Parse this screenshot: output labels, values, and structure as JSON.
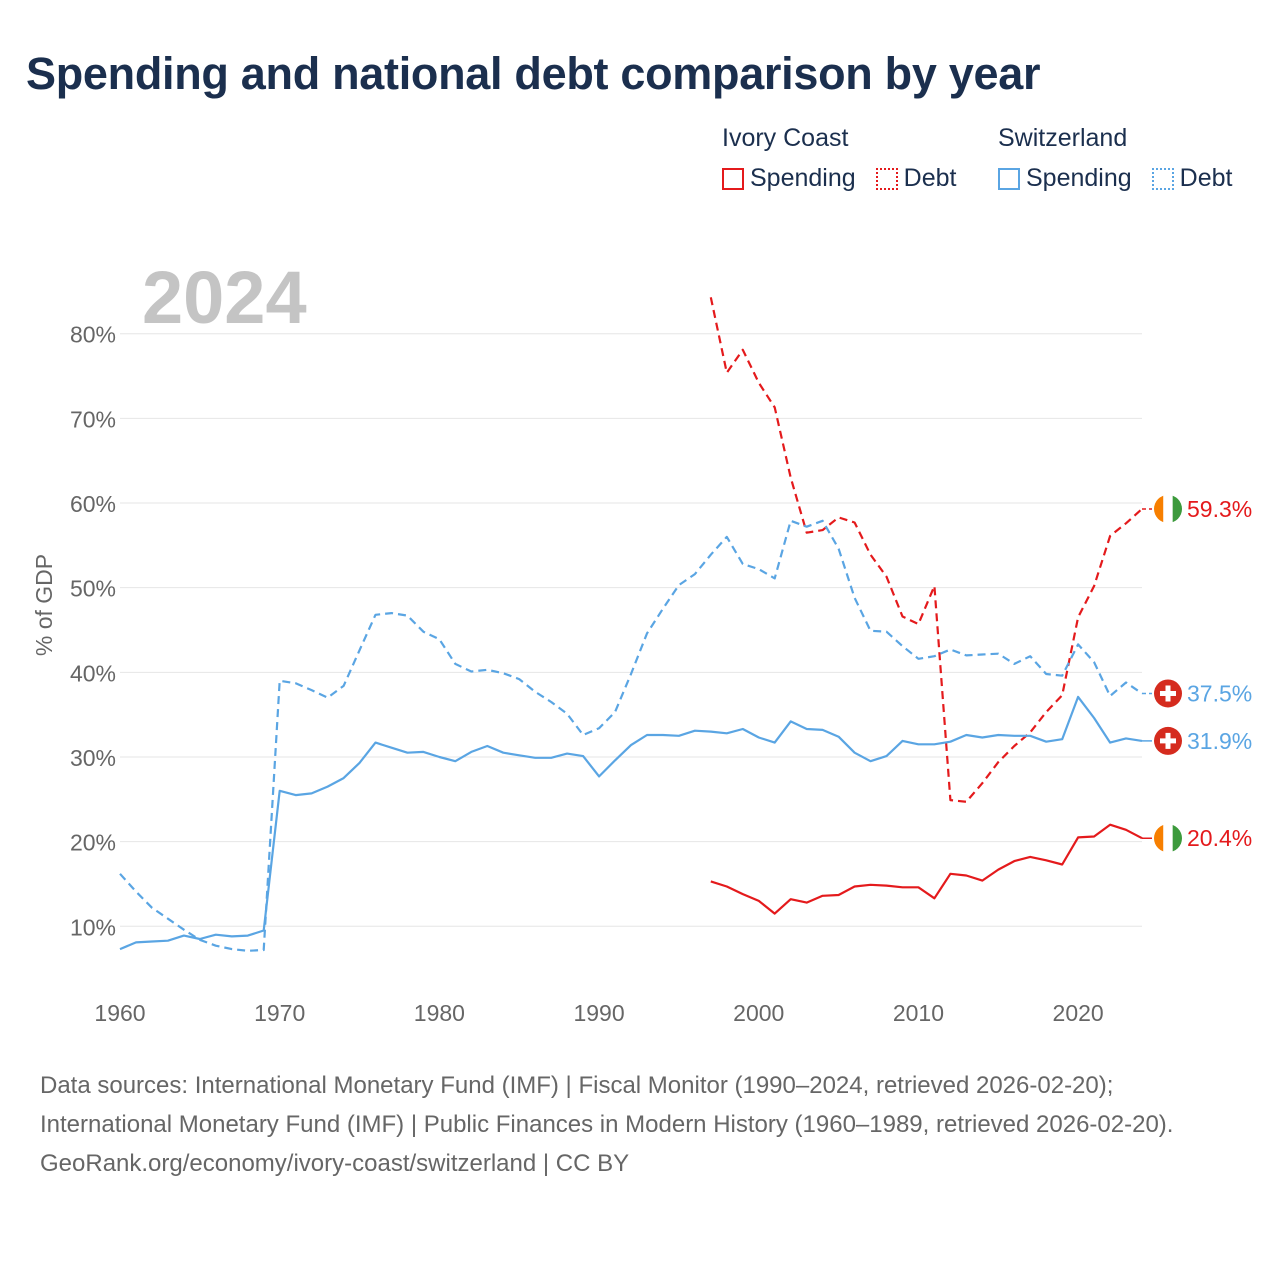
{
  "colors": {
    "ivory_coast": "#e41a1c",
    "switzerland": "#5aa5e3",
    "title": "#1b2f4e",
    "axis_text": "#666666",
    "grid": "#e6e6e6",
    "year_watermark": "#c4c4c4",
    "ci_flag_orange": "#f77f00",
    "ci_flag_white": "#ffffff",
    "ci_flag_green": "#3c9a3c",
    "ch_flag_red": "#d52b1e"
  },
  "title": "Spending and national debt comparison by year",
  "legend": {
    "groups": [
      {
        "name": "Ivory Coast",
        "spending_label": "Spending",
        "debt_label": "Debt"
      },
      {
        "name": "Switzerland",
        "spending_label": "Spending",
        "debt_label": "Debt"
      }
    ]
  },
  "footer": {
    "sources": "Data sources: International Monetary Fund (IMF) | Fiscal Monitor (1990–2024, retrieved 2026-02-20); International Monetary Fund (IMF) | Public Finances in Modern History (1960–1989, retrieved 2026-02-20).",
    "attribution": "GeoRank.org/economy/ivory-coast/switzerland | CC BY"
  },
  "chart_data": {
    "type": "line",
    "title": "Spending and national debt comparison by year",
    "year_label": "2024",
    "ylabel": "% of GDP",
    "xlabel": "",
    "xlim": [
      1960,
      2024
    ],
    "ylim": [
      2,
      88
    ],
    "x_ticks": [
      1960,
      1970,
      1980,
      1990,
      2000,
      2010,
      2020
    ],
    "x_tick_labels": [
      "1960",
      "1970",
      "1980",
      "1990",
      "2000",
      "2010",
      "2020"
    ],
    "y_ticks": [
      10,
      20,
      30,
      40,
      50,
      60,
      70,
      80
    ],
    "y_tick_labels": [
      "10%",
      "20%",
      "30%",
      "40%",
      "50%",
      "60%",
      "70%",
      "80%"
    ],
    "series": [
      {
        "name": "Ivory Coast Debt",
        "country": "ci",
        "style": "dashed",
        "color": "#e41a1c",
        "end_label": "59.3%",
        "x": [
          1997,
          1998,
          1999,
          2000,
          2001,
          2002,
          2003,
          2004,
          2005,
          2006,
          2007,
          2008,
          2009,
          2010,
          2011,
          2012,
          2013,
          2014,
          2015,
          2016,
          2017,
          2018,
          2019,
          2020,
          2021,
          2022,
          2023,
          2024
        ],
        "values": [
          84.3,
          75.4,
          78.1,
          74.2,
          71.3,
          63.0,
          56.5,
          56.8,
          58.3,
          57.7,
          53.9,
          51.3,
          46.6,
          45.7,
          50.2,
          24.9,
          24.7,
          26.9,
          29.4,
          31.3,
          32.9,
          35.3,
          37.3,
          46.5,
          50.2,
          56.1,
          57.6,
          59.3
        ]
      },
      {
        "name": "Ivory Coast Spending",
        "country": "ci",
        "style": "solid",
        "color": "#e41a1c",
        "end_label": "20.4%",
        "x": [
          1997,
          1998,
          1999,
          2000,
          2001,
          2002,
          2003,
          2004,
          2005,
          2006,
          2007,
          2008,
          2009,
          2010,
          2011,
          2012,
          2013,
          2014,
          2015,
          2016,
          2017,
          2018,
          2019,
          2020,
          2021,
          2022,
          2023,
          2024
        ],
        "values": [
          15.3,
          14.7,
          13.8,
          13.0,
          11.5,
          13.2,
          12.8,
          13.6,
          13.7,
          14.7,
          14.9,
          14.8,
          14.6,
          14.6,
          13.3,
          16.2,
          16.0,
          15.4,
          16.7,
          17.7,
          18.2,
          17.8,
          17.3,
          20.5,
          20.6,
          22.0,
          21.4,
          20.4
        ]
      },
      {
        "name": "Switzerland Debt",
        "country": "ch",
        "style": "dashed",
        "color": "#5aa5e3",
        "end_label": "37.5%",
        "x": [
          1960,
          1961,
          1962,
          1963,
          1964,
          1965,
          1966,
          1967,
          1968,
          1969,
          1970,
          1971,
          1972,
          1973,
          1974,
          1975,
          1976,
          1977,
          1978,
          1979,
          1980,
          1981,
          1982,
          1983,
          1984,
          1985,
          1986,
          1987,
          1988,
          1989,
          1990,
          1991,
          1992,
          1993,
          1994,
          1995,
          1996,
          1997,
          1998,
          1999,
          2000,
          2001,
          2002,
          2003,
          2004,
          2005,
          2006,
          2007,
          2008,
          2009,
          2010,
          2011,
          2012,
          2013,
          2014,
          2015,
          2016,
          2017,
          2018,
          2019,
          2020,
          2021,
          2022,
          2023,
          2024
        ],
        "values": [
          16.2,
          14.1,
          12.2,
          10.9,
          9.6,
          8.4,
          7.7,
          7.3,
          7.1,
          7.2,
          39.0,
          38.7,
          37.9,
          37.0,
          38.4,
          42.6,
          46.8,
          47.0,
          46.7,
          44.8,
          43.9,
          41.0,
          40.1,
          40.3,
          39.9,
          39.2,
          37.7,
          36.5,
          35.1,
          32.6,
          33.4,
          35.3,
          39.8,
          44.6,
          47.5,
          50.3,
          51.6,
          53.9,
          56.0,
          52.8,
          52.2,
          51.1,
          57.9,
          57.2,
          57.9,
          54.6,
          48.8,
          44.9,
          44.8,
          43.1,
          41.6,
          41.9,
          42.7,
          42.0,
          42.1,
          42.2,
          41.0,
          41.9,
          39.8,
          39.6,
          43.3,
          41.2,
          37.2,
          38.8,
          37.5
        ]
      },
      {
        "name": "Switzerland Spending",
        "country": "ch",
        "style": "solid",
        "color": "#5aa5e3",
        "end_label": "31.9%",
        "x": [
          1960,
          1961,
          1962,
          1963,
          1964,
          1965,
          1966,
          1967,
          1968,
          1969,
          1970,
          1971,
          1972,
          1973,
          1974,
          1975,
          1976,
          1977,
          1978,
          1979,
          1980,
          1981,
          1982,
          1983,
          1984,
          1985,
          1986,
          1987,
          1988,
          1989,
          1990,
          1991,
          1992,
          1993,
          1994,
          1995,
          1996,
          1997,
          1998,
          1999,
          2000,
          2001,
          2002,
          2003,
          2004,
          2005,
          2006,
          2007,
          2008,
          2009,
          2010,
          2011,
          2012,
          2013,
          2014,
          2015,
          2016,
          2017,
          2018,
          2019,
          2020,
          2021,
          2022,
          2023,
          2024
        ],
        "values": [
          7.3,
          8.1,
          8.2,
          8.3,
          8.9,
          8.5,
          9.0,
          8.8,
          8.9,
          9.5,
          26.0,
          25.5,
          25.7,
          26.5,
          27.5,
          29.3,
          31.7,
          31.1,
          30.5,
          30.6,
          30.0,
          29.5,
          30.6,
          31.3,
          30.5,
          30.2,
          29.9,
          29.9,
          30.4,
          30.1,
          27.7,
          29.6,
          31.4,
          32.6,
          32.6,
          32.5,
          33.1,
          33.0,
          32.8,
          33.3,
          32.3,
          31.7,
          34.2,
          33.3,
          33.2,
          32.4,
          30.5,
          29.5,
          30.1,
          31.9,
          31.5,
          31.5,
          31.8,
          32.6,
          32.3,
          32.6,
          32.5,
          32.5,
          31.8,
          32.1,
          37.1,
          34.6,
          31.7,
          32.2,
          31.9
        ]
      }
    ]
  }
}
